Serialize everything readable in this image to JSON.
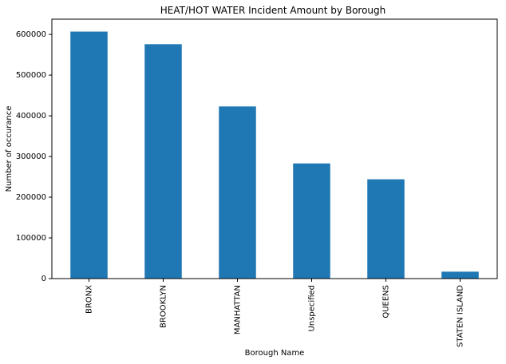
{
  "chart_data": {
    "type": "bar",
    "title": "HEAT/HOT WATER Incident Amount by Borough",
    "xlabel": "Borough Name",
    "ylabel": "Number of occurance",
    "categories": [
      "BRONX",
      "BROOKLYN",
      "MANHATTAN",
      "Unspecified",
      "QUEENS",
      "STATEN ISLAND"
    ],
    "values": [
      607000,
      576000,
      423000,
      283000,
      244000,
      17000
    ],
    "ylim": [
      0,
      637500
    ],
    "yticks": [
      0,
      100000,
      200000,
      300000,
      400000,
      500000,
      600000
    ],
    "ytick_labels": [
      "0",
      "100000",
      "200000",
      "300000",
      "400000",
      "500000",
      "600000"
    ],
    "grid": false,
    "legend": "none",
    "bar_color": "#1f77b4"
  }
}
